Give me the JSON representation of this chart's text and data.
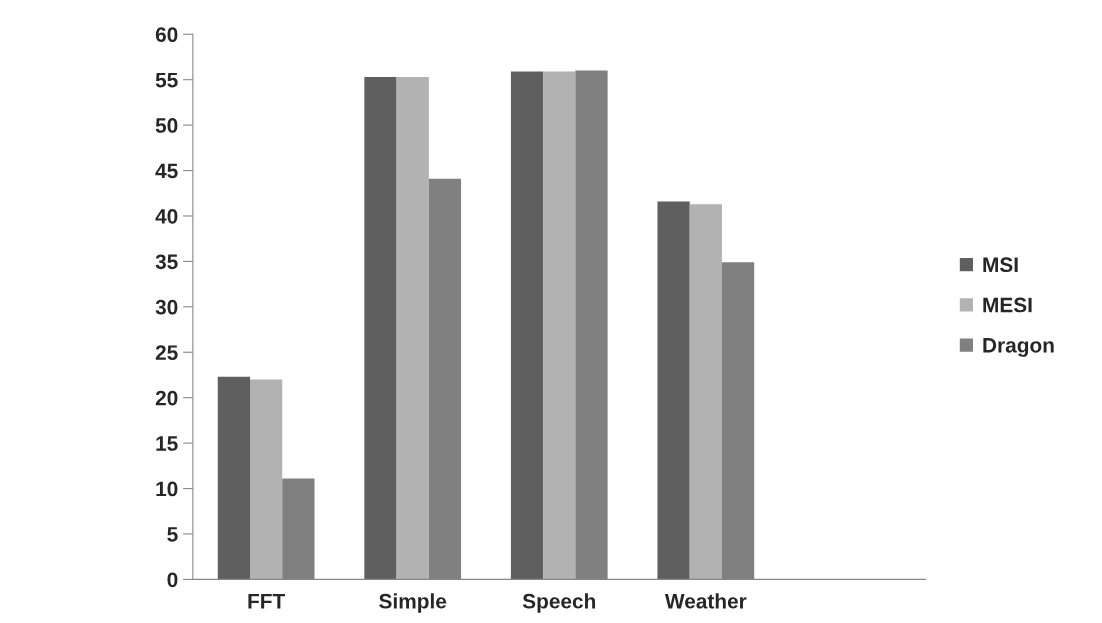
{
  "chart_data": {
    "type": "bar",
    "categories": [
      "FFT",
      "Simple",
      "Speech",
      "Weather",
      null
    ],
    "series": [
      {
        "name": "MSI",
        "color": "#5f5f5f",
        "values": [
          22.3,
          55.3,
          55.9,
          41.6,
          null
        ]
      },
      {
        "name": "MESI",
        "color": "#b2b2b2",
        "values": [
          22.0,
          55.3,
          55.9,
          41.3,
          null
        ]
      },
      {
        "name": "Dragon",
        "color": "#808080",
        "values": [
          11.1,
          44.1,
          56.0,
          34.9,
          null
        ]
      }
    ],
    "ylim": [
      0,
      60
    ],
    "yticks": [
      0,
      5,
      10,
      15,
      20,
      25,
      30,
      35,
      40,
      45,
      50,
      55,
      60
    ],
    "grid": false,
    "legend": "right"
  }
}
